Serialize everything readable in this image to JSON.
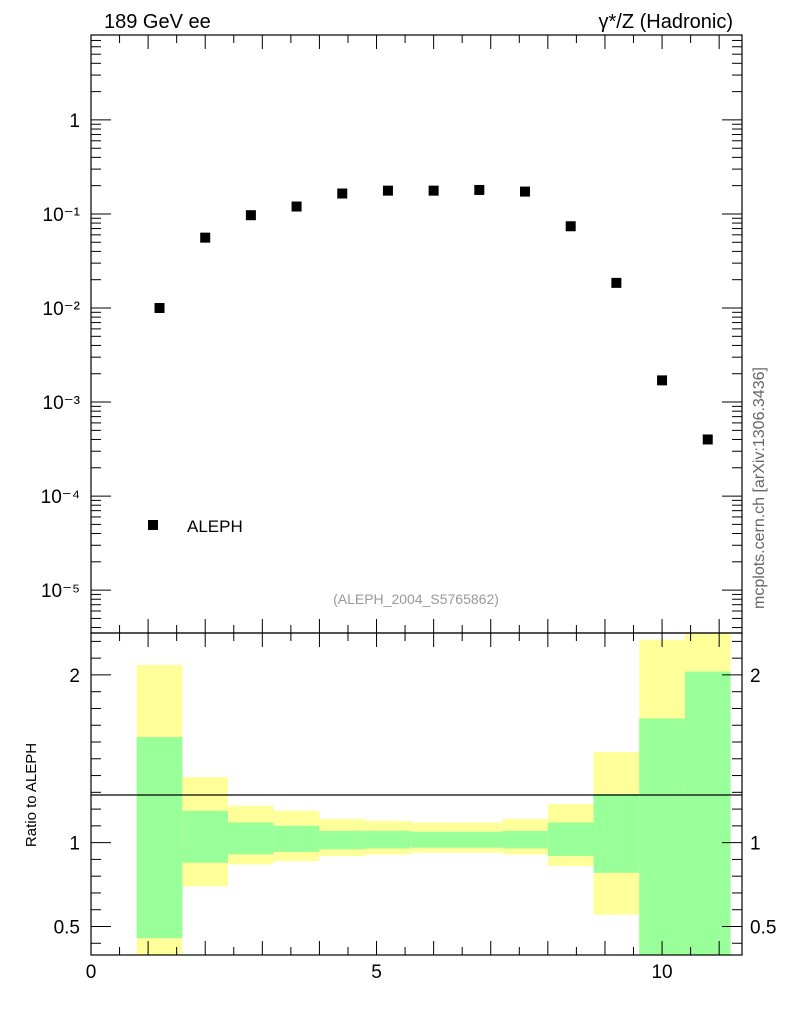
{
  "header": {
    "left_label": "189 GeV ee",
    "right_label": "γ*/Z (Hadronic)"
  },
  "side_label": "mcplots.cern.ch [arXiv:1306.3436]",
  "analysis_label": "(ALEPH_2004_S5765862)",
  "legend": {
    "entry": "ALEPH"
  },
  "ratio_ylabel": "Ratio to ALEPH",
  "colors": {
    "band_outer": "#ffff99",
    "band_inner": "#99ff99",
    "marker": "#000000",
    "analysis_label": "#999999"
  },
  "chart_data": [
    {
      "type": "scatter",
      "panel": "main",
      "yscale": "log",
      "xlim": [
        0,
        11.4
      ],
      "ylim": [
        3.5e-06,
        8
      ],
      "y_tick_labels": [
        "10⁻⁵",
        "10⁻⁴",
        "10⁻³",
        "10⁻²",
        "10⁻¹",
        "1"
      ],
      "series": [
        {
          "name": "ALEPH",
          "x": [
            1.2,
            2.0,
            2.8,
            3.6,
            4.4,
            5.2,
            6.0,
            6.8,
            7.6,
            8.4,
            9.2,
            10.0,
            10.8
          ],
          "y": [
            0.01,
            0.056,
            0.097,
            0.12,
            0.165,
            0.177,
            0.177,
            0.18,
            0.173,
            0.074,
            0.0185,
            0.0017,
            0.0004
          ]
        }
      ]
    },
    {
      "type": "area",
      "panel": "ratio",
      "ylim": [
        0.33,
        2.25
      ],
      "xlim": [
        0,
        11.4
      ],
      "x_ticks": [
        0,
        5,
        10
      ],
      "x_tick_labels": [
        "0",
        "5",
        "10"
      ],
      "y_ticks": [
        0.5,
        1,
        2
      ],
      "y_tick_labels": [
        "0.5",
        "1",
        "2"
      ],
      "reference_line": 1,
      "bins": [
        {
          "x0": 0.8,
          "x1": 1.6,
          "inner_lo": 0.43,
          "inner_hi": 1.63,
          "outer_lo": 0.33,
          "outer_hi": 2.06
        },
        {
          "x0": 1.6,
          "x1": 2.4,
          "inner_lo": 0.88,
          "inner_hi": 1.19,
          "outer_lo": 0.74,
          "outer_hi": 1.39
        },
        {
          "x0": 2.4,
          "x1": 3.2,
          "inner_lo": 0.93,
          "inner_hi": 1.12,
          "outer_lo": 0.87,
          "outer_hi": 1.22
        },
        {
          "x0": 3.2,
          "x1": 4.0,
          "inner_lo": 0.945,
          "inner_hi": 1.1,
          "outer_lo": 0.89,
          "outer_hi": 1.19
        },
        {
          "x0": 4.0,
          "x1": 4.8,
          "inner_lo": 0.96,
          "inner_hi": 1.07,
          "outer_lo": 0.92,
          "outer_hi": 1.14
        },
        {
          "x0": 4.8,
          "x1": 5.6,
          "inner_lo": 0.965,
          "inner_hi": 1.07,
          "outer_lo": 0.93,
          "outer_hi": 1.13
        },
        {
          "x0": 5.6,
          "x1": 6.4,
          "inner_lo": 0.97,
          "inner_hi": 1.065,
          "outer_lo": 0.94,
          "outer_hi": 1.12
        },
        {
          "x0": 6.4,
          "x1": 7.2,
          "inner_lo": 0.97,
          "inner_hi": 1.065,
          "outer_lo": 0.94,
          "outer_hi": 1.12
        },
        {
          "x0": 7.2,
          "x1": 8.0,
          "inner_lo": 0.965,
          "inner_hi": 1.07,
          "outer_lo": 0.93,
          "outer_hi": 1.14
        },
        {
          "x0": 8.0,
          "x1": 8.8,
          "inner_lo": 0.92,
          "inner_hi": 1.12,
          "outer_lo": 0.86,
          "outer_hi": 1.23
        },
        {
          "x0": 8.8,
          "x1": 9.6,
          "inner_lo": 0.82,
          "inner_hi": 1.29,
          "outer_lo": 0.57,
          "outer_hi": 1.54
        },
        {
          "x0": 9.6,
          "x1": 10.4,
          "inner_lo": 0.33,
          "inner_hi": 1.74,
          "outer_lo": 0.33,
          "outer_hi": 2.21
        },
        {
          "x0": 10.4,
          "x1": 11.2,
          "inner_lo": 0.33,
          "inner_hi": 2.02,
          "outer_lo": 0.33,
          "outer_hi": 2.25
        }
      ]
    }
  ]
}
